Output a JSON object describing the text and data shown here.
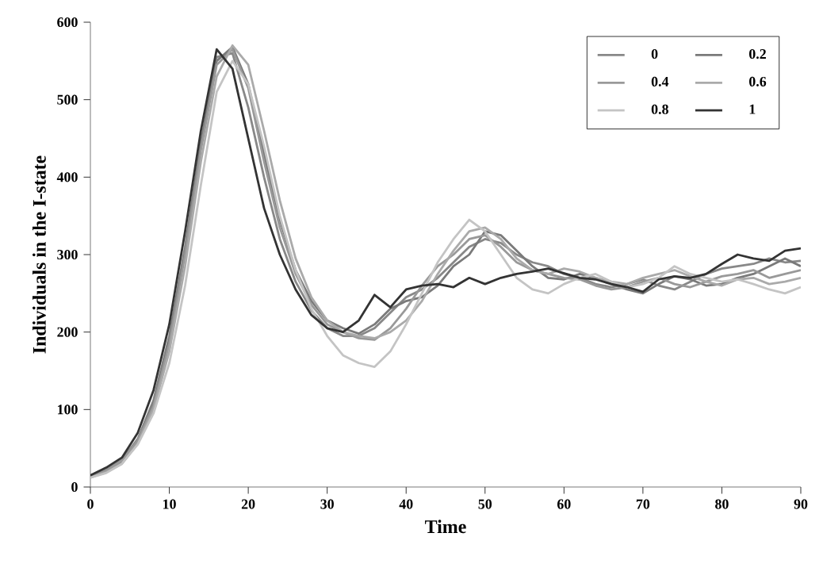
{
  "chart_data": {
    "type": "line",
    "xlabel": "Time",
    "ylabel": "Individuals in the I-state",
    "x": [
      0,
      2,
      4,
      6,
      8,
      10,
      12,
      14,
      16,
      18,
      20,
      22,
      24,
      26,
      28,
      30,
      32,
      34,
      36,
      38,
      40,
      42,
      44,
      46,
      48,
      50,
      52,
      54,
      56,
      58,
      60,
      62,
      64,
      66,
      68,
      70,
      72,
      74,
      76,
      78,
      80,
      82,
      84,
      86,
      88,
      90
    ],
    "series": [
      {
        "name": "0",
        "color": "#888888",
        "values": [
          14,
          22,
          35,
          62,
          112,
          195,
          310,
          445,
          555,
          560,
          490,
          400,
          320,
          265,
          228,
          205,
          195,
          195,
          205,
          225,
          245,
          255,
          270,
          290,
          310,
          320,
          315,
          300,
          290,
          285,
          275,
          270,
          262,
          258,
          262,
          268,
          260,
          255,
          265,
          275,
          282,
          285,
          288,
          295,
          290,
          292
        ]
      },
      {
        "name": "0.2",
        "color": "#7a7a7a",
        "values": [
          13,
          20,
          33,
          60,
          108,
          190,
          305,
          440,
          550,
          568,
          520,
          430,
          345,
          280,
          240,
          215,
          205,
          198,
          210,
          230,
          240,
          245,
          260,
          285,
          300,
          330,
          325,
          305,
          285,
          270,
          268,
          275,
          270,
          262,
          255,
          250,
          262,
          272,
          268,
          260,
          262,
          270,
          275,
          285,
          295,
          285
        ]
      },
      {
        "name": "0.4",
        "color": "#999999",
        "values": [
          13,
          21,
          34,
          60,
          105,
          185,
          300,
          435,
          545,
          565,
          515,
          420,
          335,
          275,
          235,
          210,
          200,
          192,
          190,
          205,
          230,
          260,
          285,
          300,
          320,
          325,
          310,
          290,
          280,
          275,
          270,
          268,
          260,
          255,
          258,
          265,
          270,
          262,
          258,
          265,
          272,
          275,
          280,
          270,
          275,
          280
        ]
      },
      {
        "name": "0.6",
        "color": "#aaaaaa",
        "values": [
          12,
          19,
          30,
          56,
          100,
          175,
          285,
          420,
          530,
          570,
          545,
          460,
          370,
          295,
          245,
          215,
          200,
          195,
          192,
          200,
          215,
          240,
          275,
          305,
          330,
          335,
          320,
          295,
          280,
          275,
          282,
          278,
          270,
          265,
          262,
          270,
          275,
          280,
          272,
          265,
          260,
          268,
          270,
          262,
          265,
          270
        ]
      },
      {
        "name": "0.8",
        "color": "#c4c4c4",
        "values": [
          12,
          18,
          30,
          55,
          95,
          160,
          260,
          390,
          510,
          550,
          520,
          440,
          350,
          280,
          230,
          195,
          170,
          160,
          155,
          175,
          210,
          250,
          290,
          320,
          345,
          330,
          300,
          270,
          255,
          250,
          262,
          270,
          275,
          265,
          258,
          262,
          270,
          285,
          275,
          270,
          265,
          268,
          262,
          255,
          250,
          258
        ]
      },
      {
        "name": "1",
        "color": "#333333",
        "values": [
          15,
          25,
          38,
          70,
          125,
          210,
          330,
          460,
          565,
          540,
          450,
          360,
          300,
          255,
          222,
          205,
          200,
          215,
          248,
          232,
          255,
          260,
          262,
          258,
          270,
          262,
          270,
          275,
          278,
          282,
          276,
          270,
          268,
          262,
          258,
          252,
          268,
          272,
          270,
          275,
          288,
          300,
          295,
          292,
          305,
          308
        ]
      }
    ],
    "xlim": [
      0,
      90
    ],
    "ylim": [
      0,
      600
    ],
    "xticks": [
      0,
      10,
      20,
      30,
      40,
      50,
      60,
      70,
      80,
      90
    ],
    "yticks": [
      0,
      100,
      200,
      300,
      400,
      500,
      600
    ],
    "grid": false,
    "legend": "top right",
    "marker": "none",
    "line_style": "solid"
  }
}
